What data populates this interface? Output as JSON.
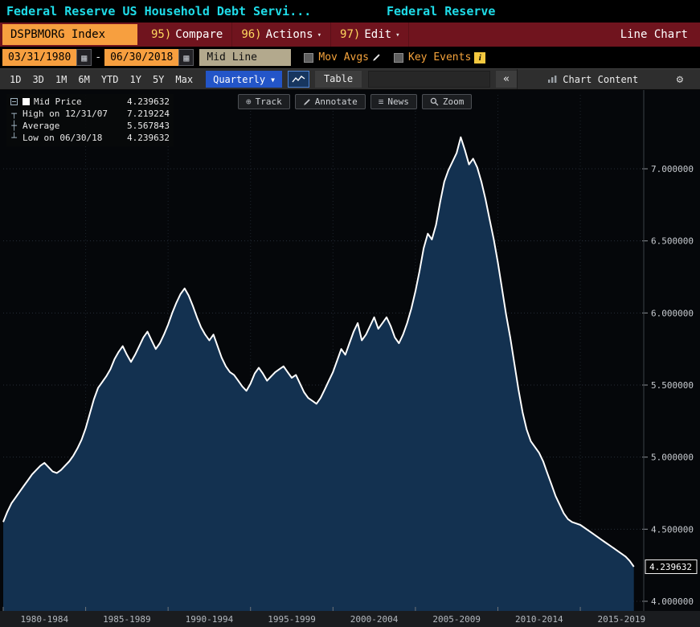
{
  "titlebar": {
    "left_title": "Federal Reserve US Household Debt Servi...",
    "right_title": "Federal Reserve"
  },
  "menubar": {
    "security": "DSPBMORG Index",
    "items": [
      {
        "num": "95)",
        "label": "Compare"
      },
      {
        "num": "96)",
        "label": "Actions"
      },
      {
        "num": "97)",
        "label": "Edit"
      }
    ],
    "right_label": "Line Chart"
  },
  "settingsbar": {
    "date_from": "03/31/1980",
    "date_sep": "-",
    "date_to": "06/30/2018",
    "line_type": "Mid Line",
    "mov_avgs_label": "Mov Avgs",
    "key_events_label": "Key Events"
  },
  "toolbar": {
    "periods": [
      "1D",
      "3D",
      "1M",
      "6M",
      "YTD",
      "1Y",
      "5Y",
      "Max"
    ],
    "frequency": "Quarterly",
    "table_label": "Table",
    "chart_content_label": "Chart Content"
  },
  "chart_toolbar": {
    "track": "Track",
    "annotate": "Annotate",
    "news": "News",
    "zoom": "Zoom"
  },
  "legend": {
    "rows": [
      {
        "label": "Mid Price",
        "value": "4.239632"
      },
      {
        "label": "High on 12/31/07",
        "value": "7.219224"
      },
      {
        "label": "Average",
        "value": "5.567843"
      },
      {
        "label": "Low on 06/30/18",
        "value": "4.239632"
      }
    ]
  },
  "icons": {
    "dropdown": "▾",
    "dropdown_solid": "▼",
    "calendar": "▦",
    "gear": "⚙",
    "chevrons_left": "«",
    "track": "⊕",
    "news": "≡",
    "info": "i",
    "high_marker": "┬",
    "average_marker": "┼",
    "low_marker": "┴"
  },
  "colors": {
    "headline_cyan": "#1fdce8",
    "menubar_red": "#70141e",
    "amber": "#f79f3f",
    "accent_blue": "#2355c8",
    "chart_fill": "#133150",
    "chart_line": "#ffffff"
  },
  "chart_data": {
    "type": "area",
    "title": "Federal Reserve US Household Debt Service: DSPBMORG Index (Quarterly)",
    "x_start": 1980.0,
    "x_step": 0.25,
    "xlim": [
      1980.0,
      2018.75
    ],
    "ylim": [
      4.0,
      7.0
    ],
    "y_ticks": [
      4.0,
      4.5,
      5.0,
      5.5,
      6.0,
      6.5,
      7.0
    ],
    "x_axis_labels": [
      "1980-1984",
      "1985-1989",
      "1990-1994",
      "1995-1999",
      "2000-2004",
      "2005-2009",
      "2010-2014",
      "2015-2019"
    ],
    "last_value_label": "4.239632",
    "high": {
      "date": "12/31/07",
      "value": 7.219224
    },
    "low": {
      "date": "06/30/18",
      "value": 4.239632
    },
    "average": 5.567843,
    "line_color": "#ffffff",
    "fill_color": "#133150",
    "values": [
      4.55,
      4.62,
      4.68,
      4.72,
      4.76,
      4.8,
      4.84,
      4.88,
      4.91,
      4.94,
      4.96,
      4.93,
      4.9,
      4.89,
      4.91,
      4.94,
      4.97,
      5.01,
      5.06,
      5.12,
      5.2,
      5.3,
      5.4,
      5.48,
      5.52,
      5.56,
      5.61,
      5.68,
      5.73,
      5.77,
      5.71,
      5.66,
      5.71,
      5.77,
      5.83,
      5.87,
      5.81,
      5.75,
      5.79,
      5.85,
      5.92,
      6.0,
      6.07,
      6.13,
      6.17,
      6.12,
      6.05,
      5.97,
      5.9,
      5.85,
      5.81,
      5.85,
      5.77,
      5.69,
      5.63,
      5.59,
      5.57,
      5.53,
      5.49,
      5.46,
      5.51,
      5.58,
      5.62,
      5.58,
      5.53,
      5.56,
      5.59,
      5.61,
      5.63,
      5.59,
      5.55,
      5.57,
      5.51,
      5.45,
      5.41,
      5.39,
      5.37,
      5.41,
      5.47,
      5.53,
      5.59,
      5.67,
      5.75,
      5.71,
      5.79,
      5.87,
      5.93,
      5.81,
      5.85,
      5.91,
      5.97,
      5.89,
      5.93,
      5.97,
      5.91,
      5.83,
      5.79,
      5.85,
      5.93,
      6.03,
      6.15,
      6.29,
      6.45,
      6.55,
      6.51,
      6.61,
      6.77,
      6.91,
      6.99,
      7.05,
      7.11,
      7.219224,
      7.13,
      7.03,
      7.07,
      7.01,
      6.91,
      6.79,
      6.65,
      6.51,
      6.35,
      6.17,
      5.99,
      5.83,
      5.65,
      5.47,
      5.31,
      5.19,
      5.11,
      5.07,
      5.03,
      4.97,
      4.89,
      4.81,
      4.73,
      4.67,
      4.61,
      4.57,
      4.55,
      4.54,
      4.53,
      4.51,
      4.49,
      4.47,
      4.45,
      4.43,
      4.41,
      4.39,
      4.37,
      4.35,
      4.33,
      4.31,
      4.28,
      4.239632
    ]
  }
}
